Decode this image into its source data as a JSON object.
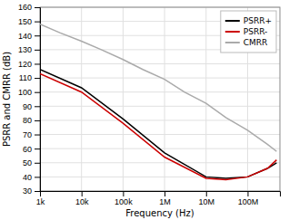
{
  "chart_data": {
    "type": "line",
    "xlabel": "Frequency (Hz)",
    "ylabel": "PSRR and CMRR (dB)",
    "log": "x",
    "xlim": [
      1000,
      600000000
    ],
    "ylim": [
      30,
      160
    ],
    "xticks": [
      {
        "value": 1000,
        "label": "1k"
      },
      {
        "value": 10000,
        "label": "10k"
      },
      {
        "value": 100000,
        "label": "100k"
      },
      {
        "value": 1000000,
        "label": "1M"
      },
      {
        "value": 10000000,
        "label": "10M"
      },
      {
        "value": 100000000,
        "label": "100M"
      }
    ],
    "yticks": [
      30,
      40,
      50,
      60,
      70,
      80,
      90,
      100,
      110,
      120,
      130,
      140,
      150,
      160
    ],
    "grid": true,
    "legend": "upper right",
    "series": [
      {
        "name": "PSRR+",
        "color": "#000000",
        "x": [
          1000,
          10000,
          100000,
          1000000,
          10000000,
          30000000,
          100000000,
          300000000,
          500000000
        ],
        "values": [
          116,
          103,
          81,
          57,
          40,
          39,
          40,
          46,
          50
        ]
      },
      {
        "name": "PSRR-",
        "color": "#cc0000",
        "x": [
          1000,
          10000,
          100000,
          1000000,
          10000000,
          30000000,
          100000000,
          300000000,
          500000000
        ],
        "values": [
          113,
          100,
          78,
          54,
          39,
          38,
          40,
          46,
          52
        ]
      },
      {
        "name": "CMRR",
        "color": "#aaaaaa",
        "x": [
          1000,
          3000,
          10000,
          30000,
          100000,
          300000,
          1000000,
          3000000,
          10000000,
          30000000,
          100000000,
          300000000,
          500000000
        ],
        "values": [
          148,
          142,
          136,
          130,
          123,
          116,
          109,
          100,
          92,
          82,
          73,
          63,
          58
        ]
      }
    ]
  }
}
